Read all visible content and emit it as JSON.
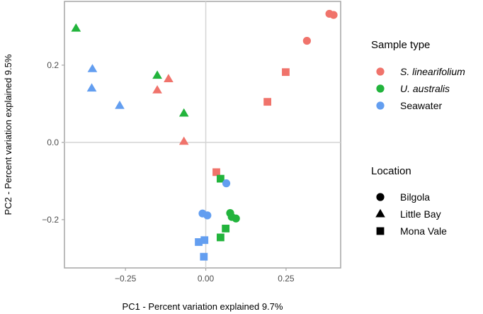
{
  "chart_data": {
    "type": "scatter",
    "title": "",
    "xlabel": "PC1 - Percent variation explained 9.7%",
    "ylabel": "PC2 - Percent variation explained 9.5%",
    "xlim": [
      -0.44,
      0.42
    ],
    "ylim": [
      -0.325,
      0.365
    ],
    "x_ticks": [
      -0.25,
      0.0,
      0.25
    ],
    "x_tick_labels": [
      "−0.25",
      "0.00",
      "0.25"
    ],
    "y_ticks": [
      -0.2,
      0.0,
      0.2
    ],
    "y_tick_labels": [
      "−0.2",
      "0.0",
      "0.2"
    ],
    "reference_lines": {
      "x": 0,
      "y": 0
    },
    "legend_position": "right",
    "color_legend": {
      "title": "Sample type",
      "entries": [
        {
          "key": "linearifolium",
          "label": "S. linearifolium",
          "color": "#f0736b",
          "italic": true
        },
        {
          "key": "australis",
          "label": "U. australis",
          "color": "#22b43c",
          "italic": true
        },
        {
          "key": "seawater",
          "label": "Seawater",
          "color": "#639ef0",
          "italic": false
        }
      ]
    },
    "shape_legend": {
      "title": "Location",
      "entries": [
        {
          "key": "Bilgola",
          "label": "Bilgola",
          "shape": "circle"
        },
        {
          "key": "LittleBay",
          "label": "Little Bay",
          "shape": "triangle"
        },
        {
          "key": "MonaVale",
          "label": "Mona Vale",
          "shape": "square"
        }
      ]
    },
    "points": [
      {
        "x": 0.385,
        "y": 0.333,
        "type": "linearifolium",
        "location": "Bilgola"
      },
      {
        "x": 0.398,
        "y": 0.33,
        "type": "linearifolium",
        "location": "Bilgola"
      },
      {
        "x": 0.315,
        "y": 0.263,
        "type": "linearifolium",
        "location": "Bilgola"
      },
      {
        "x": 0.249,
        "y": 0.182,
        "type": "linearifolium",
        "location": "MonaVale"
      },
      {
        "x": 0.192,
        "y": 0.105,
        "type": "linearifolium",
        "location": "MonaVale"
      },
      {
        "x": -0.116,
        "y": 0.164,
        "type": "linearifolium",
        "location": "LittleBay"
      },
      {
        "x": -0.151,
        "y": 0.135,
        "type": "linearifolium",
        "location": "LittleBay"
      },
      {
        "x": -0.068,
        "y": 0.002,
        "type": "linearifolium",
        "location": "LittleBay"
      },
      {
        "x": 0.033,
        "y": -0.077,
        "type": "linearifolium",
        "location": "MonaVale"
      },
      {
        "x": -0.404,
        "y": 0.295,
        "type": "australis",
        "location": "LittleBay"
      },
      {
        "x": -0.151,
        "y": 0.173,
        "type": "australis",
        "location": "LittleBay"
      },
      {
        "x": -0.068,
        "y": 0.075,
        "type": "australis",
        "location": "LittleBay"
      },
      {
        "x": 0.046,
        "y": -0.094,
        "type": "australis",
        "location": "MonaVale"
      },
      {
        "x": 0.076,
        "y": -0.183,
        "type": "australis",
        "location": "Bilgola"
      },
      {
        "x": 0.081,
        "y": -0.193,
        "type": "australis",
        "location": "Bilgola"
      },
      {
        "x": 0.094,
        "y": -0.197,
        "type": "australis",
        "location": "Bilgola"
      },
      {
        "x": 0.062,
        "y": -0.223,
        "type": "australis",
        "location": "MonaVale"
      },
      {
        "x": 0.046,
        "y": -0.246,
        "type": "australis",
        "location": "MonaVale"
      },
      {
        "x": -0.353,
        "y": 0.19,
        "type": "seawater",
        "location": "LittleBay"
      },
      {
        "x": -0.355,
        "y": 0.14,
        "type": "seawater",
        "location": "LittleBay"
      },
      {
        "x": -0.268,
        "y": 0.095,
        "type": "seawater",
        "location": "LittleBay"
      },
      {
        "x": 0.064,
        "y": -0.106,
        "type": "seawater",
        "location": "Bilgola"
      },
      {
        "x": -0.01,
        "y": -0.184,
        "type": "seawater",
        "location": "Bilgola"
      },
      {
        "x": 0.005,
        "y": -0.189,
        "type": "seawater",
        "location": "Bilgola"
      },
      {
        "x": -0.004,
        "y": -0.253,
        "type": "seawater",
        "location": "MonaVale"
      },
      {
        "x": -0.022,
        "y": -0.258,
        "type": "seawater",
        "location": "MonaVale"
      },
      {
        "x": -0.006,
        "y": -0.296,
        "type": "seawater",
        "location": "MonaVale"
      }
    ]
  }
}
